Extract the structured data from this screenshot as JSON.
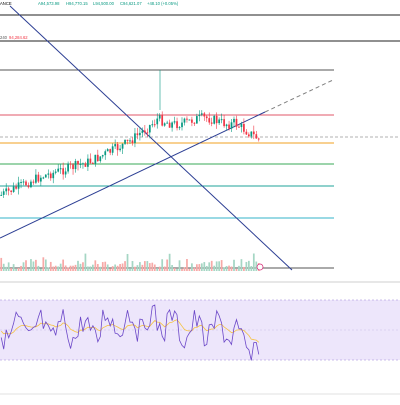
{
  "header": {
    "symbol_suffix": "ANCE",
    "ohlc": [
      {
        "text": "A94,573.98",
        "color": "#089981"
      },
      {
        "text": "H94,770.15",
        "color": "#089981"
      },
      {
        "text": "L94,500.00",
        "color": "#089981"
      },
      {
        "text": "C94,621.07",
        "color": "#089981"
      },
      {
        "text": "+48.10 (+0.05%)",
        "color": "#089981"
      }
    ],
    "sub_left": "240",
    "sub_value": "94,284.62",
    "sub_value_color": "#f23645",
    "sub_extra": "",
    "sub_extra_color": "#f5c242"
  },
  "colors": {
    "up": "#089981",
    "down": "#f23645",
    "trendline": "#2d3f94",
    "dashed_line": "#808080",
    "grid_line": "#c8c8c8",
    "volume_up": "#a5d6c4",
    "volume_down": "#f7a9a7",
    "rsi_line": "#6c48c8",
    "rsi_ma": "#f5c242",
    "rsi_band": "#ede6fb",
    "rsi_border": "#9e84d8"
  },
  "horizontal_levels": [
    {
      "name": "level-top-black",
      "color": "#555555"
    },
    {
      "name": "level-red",
      "color": "#e05768"
    },
    {
      "name": "level-gray",
      "color": "#b0b0b0"
    },
    {
      "name": "level-orange",
      "color": "#f0a020"
    },
    {
      "name": "level-green",
      "color": "#3aa857"
    },
    {
      "name": "level-teal",
      "color": "#1fa39a"
    },
    {
      "name": "level-cyan",
      "color": "#33b3c9"
    },
    {
      "name": "level-bottom",
      "color": "#555555"
    }
  ],
  "chart_data": {
    "type": "candlestick",
    "title": "",
    "series_note": "",
    "candles_count": 105,
    "rsi": {
      "upper": 70,
      "lower": 30
    }
  }
}
